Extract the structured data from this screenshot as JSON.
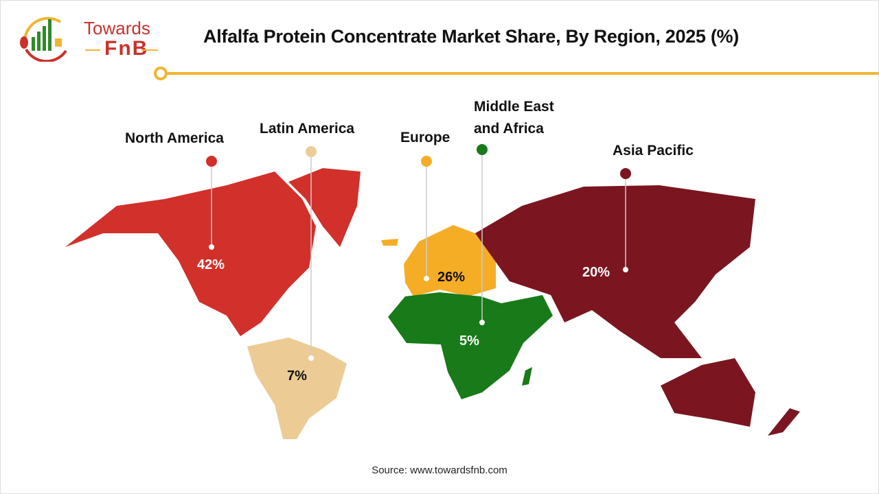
{
  "header": {
    "title": "Alfalfa Protein Concentrate Market Share, By Region, 2025 (%)",
    "logo_text_1": "Towards",
    "logo_text_2": "FnB"
  },
  "chart_data": {
    "type": "map",
    "title": "Alfalfa Protein Concentrate Market Share, By Region, 2025 (%)",
    "unit": "%",
    "categories": [
      "North America",
      "Latin America",
      "Europe",
      "Middle East and Africa",
      "Asia Pacific"
    ],
    "values": [
      42,
      7,
      26,
      5,
      20
    ],
    "value_labels": [
      "42%",
      "7%",
      "26%",
      "5%",
      "20%"
    ],
    "colors": [
      "#d2302b",
      "#eccb95",
      "#f5ad26",
      "#187a19",
      "#7b1621"
    ]
  },
  "footer": {
    "source": "Source: www.towardsfnb.com"
  },
  "colors": {
    "accent": "#f2b430",
    "brand_red": "#c8322c"
  }
}
